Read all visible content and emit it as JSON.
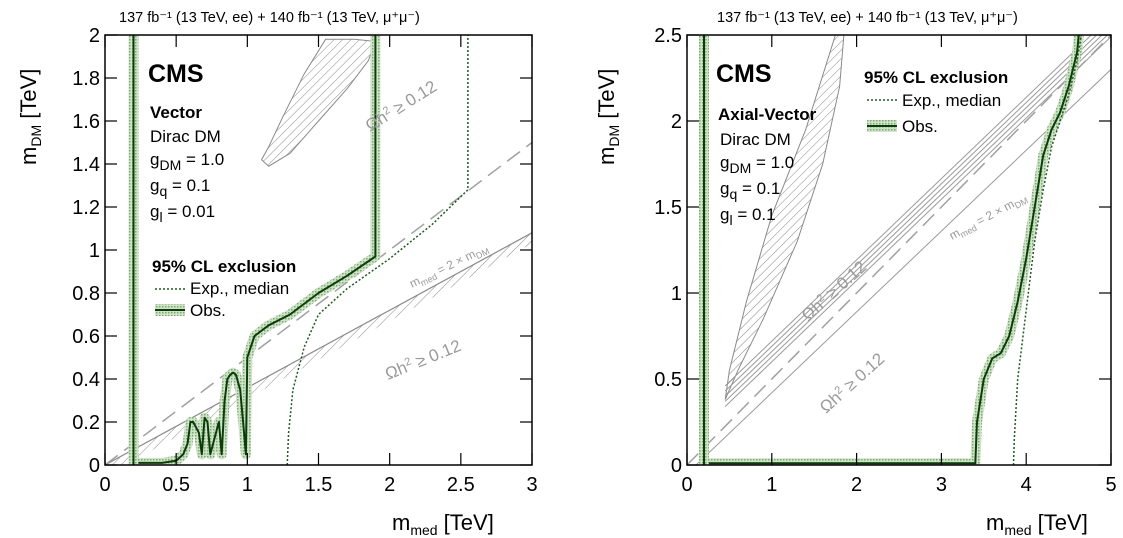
{
  "chart_data": [
    {
      "type": "line",
      "header": "137 fb⁻¹ (13 TeV, ee) + 140 fb⁻¹ (13 TeV, μ⁺μ⁻)",
      "experiment": "CMS",
      "model": "Vector",
      "lines": [
        "Dirac DM",
        "g_DM = 1.0",
        "g_q = 0.1",
        "g_l = 0.01"
      ],
      "legend_title": "95% CL exclusion",
      "legend": [
        "Exp., median",
        "Obs."
      ],
      "relic_label": "Ωh² ≥ 0.12",
      "diag_label": "m_med = 2 × m_DM",
      "xlabel": "m_med [TeV]",
      "ylabel": "m_DM [TeV]",
      "xlim": [
        0,
        3
      ],
      "ylim": [
        0,
        2
      ],
      "xticks": [
        0,
        0.5,
        1,
        1.5,
        2,
        2.5,
        3
      ],
      "yticks": [
        0,
        0.2,
        0.4,
        0.6,
        0.8,
        1,
        1.2,
        1.4,
        1.6,
        1.8,
        2
      ],
      "series": [
        {
          "name": "Obs.",
          "x": [
            0.2,
            0.22,
            0.26,
            0.3,
            0.4,
            0.5,
            0.55,
            0.58,
            0.6,
            0.62,
            0.66,
            0.68,
            0.7,
            0.72,
            0.74,
            0.78,
            0.8,
            0.82,
            0.84,
            0.86,
            0.88,
            0.9,
            0.92,
            0.95,
            0.97,
            0.99,
            1.0,
            1.05,
            1.15,
            1.3,
            1.5,
            1.7,
            1.9,
            1.9
          ],
          "y": [
            0,
            0.01,
            0.01,
            0.01,
            0.01,
            0.02,
            0.05,
            0.1,
            0.2,
            0.2,
            0.15,
            0.05,
            0.22,
            0.2,
            0.05,
            0.15,
            0.2,
            0.05,
            0.3,
            0.4,
            0.42,
            0.43,
            0.42,
            0.35,
            0.2,
            0.05,
            0.5,
            0.6,
            0.65,
            0.7,
            0.8,
            0.88,
            0.97,
            2.0
          ]
        },
        {
          "name": "Obs.",
          "x": [
            0.2,
            0.2
          ],
          "y": [
            0,
            2.0
          ]
        },
        {
          "name": "Exp., median",
          "x": [
            1.28,
            1.29,
            1.32,
            1.4,
            1.5,
            1.7,
            2.0,
            2.3,
            2.55,
            2.55
          ],
          "y": [
            0,
            0.15,
            0.35,
            0.55,
            0.7,
            0.82,
            0.96,
            1.12,
            1.28,
            2.0
          ]
        }
      ],
      "relic_diagonal": {
        "x": [
          0,
          3
        ],
        "y": [
          0,
          1.08
        ]
      },
      "med_diagonal": {
        "x": [
          0,
          3
        ],
        "y": [
          0,
          1.5
        ]
      },
      "relic_island": {
        "x": [
          1.1,
          1.15,
          1.3,
          1.5,
          1.7,
          1.85,
          1.9,
          1.75,
          1.55,
          1.4,
          1.25,
          1.15
        ],
        "y": [
          1.42,
          1.39,
          1.45,
          1.6,
          1.75,
          1.88,
          1.97,
          1.98,
          1.98,
          1.82,
          1.62,
          1.48
        ]
      }
    },
    {
      "type": "line",
      "header": "137 fb⁻¹ (13 TeV, ee) + 140 fb⁻¹ (13 TeV, μ⁺μ⁻)",
      "experiment": "CMS",
      "model": "Axial-Vector",
      "lines": [
        "Dirac DM",
        "g_DM = 1.0",
        "g_q = 0.1",
        "g_l = 0.1"
      ],
      "legend_title": "95% CL exclusion",
      "legend": [
        "Exp., median",
        "Obs."
      ],
      "relic_label": "Ωh² ≥ 0.12",
      "diag_label": "m_med = 2 × m_DM",
      "xlabel": "m_med [TeV]",
      "ylabel": "m_DM [TeV]",
      "xlim": [
        0,
        5
      ],
      "ylim": [
        0,
        2.5
      ],
      "xticks": [
        0,
        1,
        2,
        3,
        4,
        5
      ],
      "yticks": [
        0,
        0.5,
        1,
        1.5,
        2,
        2.5
      ],
      "series": [
        {
          "name": "Obs.",
          "x": [
            0.2,
            0.3,
            1,
            2,
            3,
            3.4,
            3.42,
            3.5,
            3.6,
            3.7,
            3.8,
            3.9,
            4.0,
            4.1,
            4.2,
            4.3,
            4.4,
            4.5,
            4.6,
            4.62
          ],
          "y": [
            0.01,
            0.01,
            0.01,
            0.01,
            0.01,
            0.01,
            0.25,
            0.5,
            0.62,
            0.65,
            0.75,
            0.95,
            1.2,
            1.5,
            1.8,
            1.95,
            2.05,
            2.2,
            2.4,
            2.5
          ]
        },
        {
          "name": "Obs.",
          "x": [
            0.2,
            0.2
          ],
          "y": [
            0,
            2.5
          ]
        },
        {
          "name": "Exp., median",
          "x": [
            3.85,
            3.86,
            3.9,
            4.0,
            4.1,
            4.2,
            4.3,
            4.4,
            4.5,
            4.6,
            4.65
          ],
          "y": [
            0,
            0.15,
            0.5,
            0.9,
            1.3,
            1.6,
            1.85,
            2.0,
            2.15,
            2.35,
            2.5
          ]
        }
      ],
      "relic_diagonal": {
        "x": [
          0.45,
          5
        ],
        "y": [
          0.4,
          2.55
        ]
      },
      "med_diagonal": {
        "x": [
          0,
          5
        ],
        "y": [
          0,
          2.5
        ]
      },
      "relic_island": {
        "x": [
          0.45,
          0.6,
          0.9,
          1.3,
          1.6,
          1.8,
          1.85,
          1.75,
          1.4,
          1.0,
          0.7,
          0.5
        ],
        "y": [
          0.38,
          0.55,
          0.85,
          1.3,
          1.75,
          2.2,
          2.5,
          2.5,
          1.95,
          1.45,
          0.95,
          0.55
        ]
      }
    }
  ]
}
